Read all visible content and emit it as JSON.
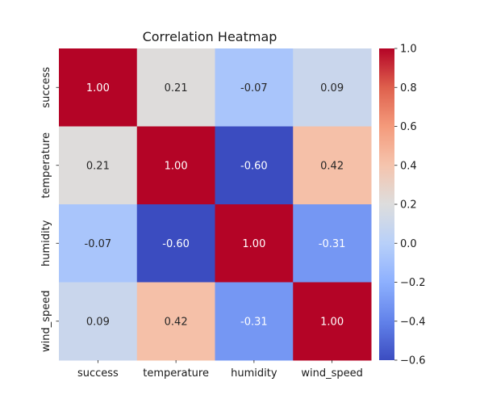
{
  "chart_data": {
    "type": "heatmap",
    "title": "Correlation Heatmap",
    "xlabel": "",
    "ylabel": "",
    "x_categories": [
      "success",
      "temperature",
      "humidity",
      "wind_speed"
    ],
    "y_categories": [
      "success",
      "temperature",
      "humidity",
      "wind_speed"
    ],
    "values": [
      [
        1.0,
        0.21,
        -0.07,
        0.09
      ],
      [
        0.21,
        1.0,
        -0.6,
        0.42
      ],
      [
        -0.07,
        -0.6,
        1.0,
        -0.31
      ],
      [
        0.09,
        0.42,
        -0.31,
        1.0
      ]
    ],
    "value_labels": [
      [
        "1.00",
        "0.21",
        "-0.07",
        "0.09"
      ],
      [
        "0.21",
        "1.00",
        "-0.60",
        "0.42"
      ],
      [
        "-0.07",
        "-0.60",
        "1.00",
        "-0.31"
      ],
      [
        "0.09",
        "0.42",
        "-0.31",
        "1.00"
      ]
    ],
    "colormap": "coolwarm",
    "color_range": [
      -0.6,
      1.0
    ],
    "colorbar_ticks": [
      1.0,
      0.8,
      0.6,
      0.4,
      0.2,
      0.0,
      -0.2,
      -0.4,
      -0.6
    ],
    "colorbar_tick_labels": [
      "1.0",
      "0.8",
      "0.6",
      "0.4",
      "0.2",
      "0.0",
      "−0.2",
      "−0.4",
      "−0.6"
    ],
    "colorbar_placement": "right",
    "grid": false
  }
}
